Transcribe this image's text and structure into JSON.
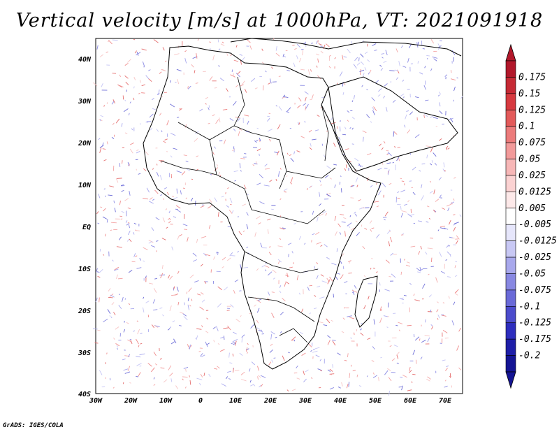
{
  "title": "Vertical velocity [m/s] at 1000hPa, VT: 2021091918",
  "credit": "GrADS: IGES/COLA",
  "map": {
    "lon_range": [
      -30,
      75
    ],
    "lat_range": [
      -40,
      45
    ],
    "lat_ticks": [
      "40N",
      "30N",
      "20N",
      "10N",
      "EQ",
      "10S",
      "20S",
      "30S",
      "40S"
    ],
    "lon_ticks": [
      "30W",
      "20W",
      "10W",
      "0",
      "10E",
      "20E",
      "30E",
      "40E",
      "50E",
      "60E",
      "70E"
    ]
  },
  "colorbar": {
    "labels": [
      "0.175",
      "0.15",
      "0.125",
      "0.1",
      "0.075",
      "0.05",
      "0.025",
      "0.0125",
      "0.005",
      "-0.005",
      "-0.0125",
      "-0.025",
      "-0.05",
      "-0.075",
      "-0.1",
      "-0.125",
      "-0.175",
      "-0.2"
    ],
    "colors": [
      "#b2182b",
      "#c62a35",
      "#d73a40",
      "#e35a5a",
      "#ec7b7b",
      "#f29a9a",
      "#f7b7b7",
      "#fbd2d2",
      "#fde9e9",
      "#ffffff",
      "#e6e6fb",
      "#c8c8f4",
      "#a8a8ec",
      "#8888e2",
      "#6a6ad8",
      "#4c4ccc",
      "#2e2ebe",
      "#1e1ea8",
      "#141494"
    ],
    "top_color": "#b2182b",
    "bottom_color": "#141494"
  }
}
